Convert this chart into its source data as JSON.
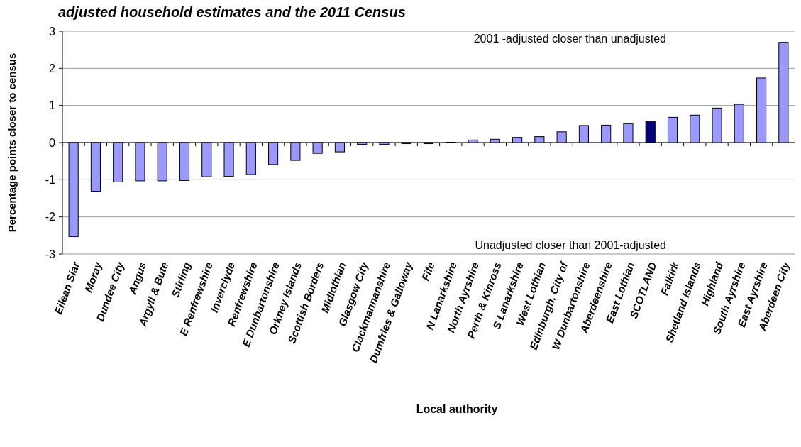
{
  "chart_data": {
    "type": "bar",
    "title": "adjusted household estimates and the 2011 Census",
    "xlabel": "Local authority",
    "ylabel": "Percentage points closer to census",
    "categories": [
      "Eilean Siar",
      "Moray",
      "Dundee City",
      "Angus",
      "Argyll & Bute",
      "Stirling",
      "E Renfrewshire",
      "Inverclyde",
      "Renfrewshire",
      "E Dunbartonshire",
      "Orkney Islands",
      "Scottish Borders",
      "Midlothian",
      "Glasgow City",
      "Clackmannanshire",
      "Dumfries & Galloway",
      "Fife",
      "N Lanarkshire",
      "North Ayrshire",
      "Perth & Kinross",
      "S Lanarkshire",
      "West Lothian",
      "Edinburgh, City of",
      "W Dunbartonshire",
      "Aberdeenshire",
      "East Lothian",
      "SCOTLAND",
      "Falkirk",
      "Shetland Islands",
      "Highland",
      "South Ayrshire",
      "East Ayrshire",
      "Aberdeen City"
    ],
    "values": [
      -2.53,
      -1.31,
      -1.06,
      -1.03,
      -1.03,
      -1.02,
      -0.92,
      -0.91,
      -0.86,
      -0.59,
      -0.48,
      -0.29,
      -0.25,
      -0.05,
      -0.05,
      -0.03,
      -0.03,
      0.01,
      0.07,
      0.09,
      0.14,
      0.16,
      0.29,
      0.46,
      0.47,
      0.51,
      0.57,
      0.68,
      0.74,
      0.93,
      1.03,
      1.74,
      2.7
    ],
    "colors": [
      "#9999ff",
      "#9999ff",
      "#9999ff",
      "#9999ff",
      "#9999ff",
      "#9999ff",
      "#9999ff",
      "#9999ff",
      "#9999ff",
      "#9999ff",
      "#9999ff",
      "#9999ff",
      "#9999ff",
      "#9999ff",
      "#9999ff",
      "#9999ff",
      "#9999ff",
      "#9999ff",
      "#9999ff",
      "#9999ff",
      "#9999ff",
      "#9999ff",
      "#9999ff",
      "#9999ff",
      "#9999ff",
      "#9999ff",
      "#000080",
      "#9999ff",
      "#9999ff",
      "#9999ff",
      "#9999ff",
      "#9999ff",
      "#9999ff"
    ],
    "ylim": [
      -3,
      3
    ],
    "yticks": [
      -3,
      -2,
      -1,
      0,
      1,
      2,
      3
    ],
    "grid": "y",
    "annotations": [
      "2001 -adjusted closer than unadjusted",
      "Unadjusted closer than 2001-adjusted"
    ]
  }
}
